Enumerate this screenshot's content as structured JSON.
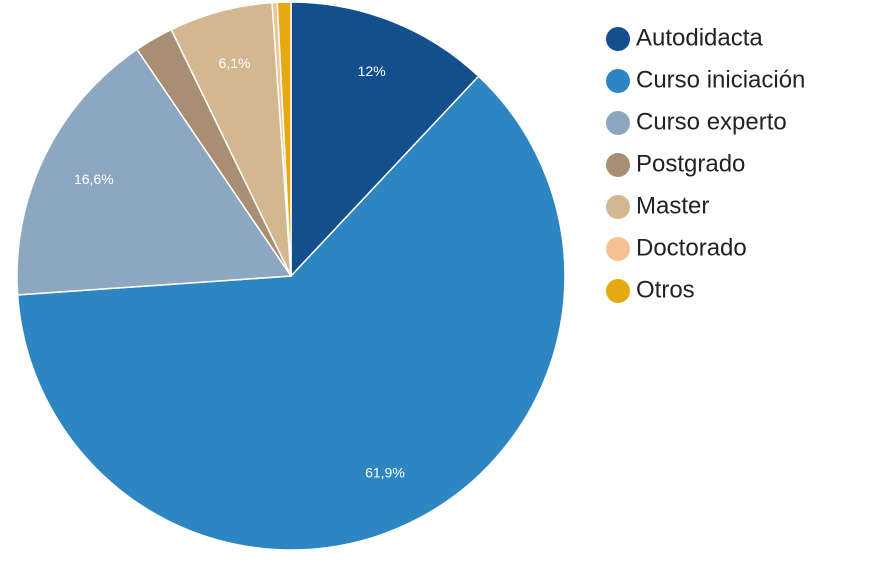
{
  "chart_data": {
    "type": "pie",
    "categories": [
      "Autodidacta",
      "Curso iniciación",
      "Curso experto",
      "Postgrado",
      "Master",
      "Doctorado",
      "Otros"
    ],
    "values": [
      12,
      61.9,
      16.6,
      2.3,
      6.1,
      0.3,
      0.8
    ],
    "data_labels": [
      "12%",
      "61,9%",
      "16,6%",
      "",
      "6,1%",
      "",
      ""
    ],
    "colors": [
      "#124f8c",
      "#2d85c1",
      "#8ca7bf",
      "#a88f73",
      "#d3b791",
      "#f6c192",
      "#e6aa0f"
    ],
    "start_angle_deg": 0,
    "direction": "clockwise",
    "legend_position": "right",
    "legend_marker": "circle"
  }
}
